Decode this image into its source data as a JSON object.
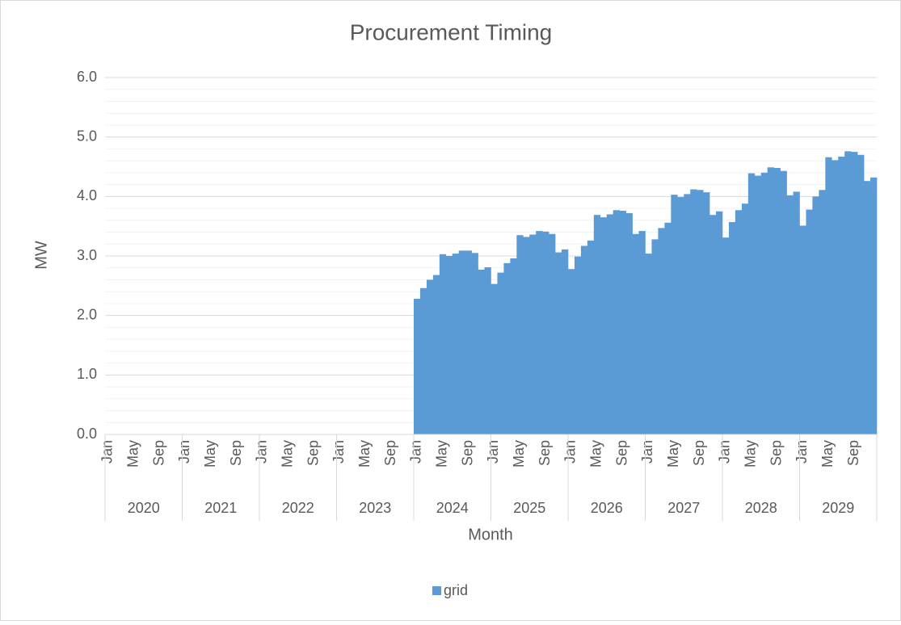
{
  "chart_data": {
    "type": "bar",
    "title": "Procurement Timing",
    "y_label": "MW",
    "x_label": "Month",
    "categories": [
      "Jan",
      null,
      null,
      null,
      "May",
      null,
      null,
      null,
      "Sep",
      null,
      null,
      null,
      "Jan",
      null,
      null,
      null,
      "May",
      null,
      null,
      null,
      "Sep",
      null,
      null,
      null,
      "Jan",
      null,
      null,
      null,
      "May",
      null,
      null,
      null,
      "Sep",
      null,
      null,
      null,
      "Jan",
      null,
      null,
      null,
      "May",
      null,
      null,
      null,
      "Sep",
      null,
      null,
      null,
      "Jan",
      null,
      null,
      null,
      "May",
      null,
      null,
      null,
      "Sep",
      null,
      null,
      null,
      "Jan",
      null,
      null,
      null,
      "May",
      null,
      null,
      null,
      "Sep",
      null,
      null,
      null,
      "Jan",
      null,
      null,
      null,
      "May",
      null,
      null,
      null,
      "Sep",
      null,
      null,
      null,
      "Jan",
      null,
      null,
      null,
      "May",
      null,
      null,
      null,
      "Sep",
      null,
      null,
      null,
      "Jan",
      null,
      null,
      null,
      "May",
      null,
      null,
      null,
      "Sep",
      null,
      null,
      null,
      "Jan",
      null,
      null,
      null,
      "May",
      null,
      null,
      null,
      "Sep",
      null,
      null,
      null
    ],
    "groups": [
      "2020",
      "2021",
      "2022",
      "2023",
      "2024",
      "2025",
      "2026",
      "2027",
      "2028",
      "2029"
    ],
    "series": [
      {
        "name": "grid",
        "color": "#5b9bd5",
        "values": [
          0,
          0,
          0,
          0,
          0,
          0,
          0,
          0,
          0,
          0,
          0,
          0,
          0,
          0,
          0,
          0,
          0,
          0,
          0,
          0,
          0,
          0,
          0,
          0,
          0,
          0,
          0,
          0,
          0,
          0,
          0,
          0,
          0,
          0,
          0,
          0,
          0,
          0,
          0,
          0,
          0,
          0,
          0,
          0,
          0,
          0,
          0,
          0,
          2.28,
          2.46,
          2.6,
          2.68,
          3.03,
          3.0,
          3.04,
          3.09,
          3.09,
          3.05,
          2.77,
          2.81,
          2.53,
          2.72,
          2.88,
          2.96,
          3.35,
          3.32,
          3.36,
          3.42,
          3.41,
          3.37,
          3.06,
          3.11,
          2.78,
          2.99,
          3.17,
          3.26,
          3.69,
          3.65,
          3.7,
          3.77,
          3.76,
          3.72,
          3.37,
          3.42,
          3.04,
          3.28,
          3.47,
          3.56,
          4.03,
          3.99,
          4.04,
          4.12,
          4.11,
          4.07,
          3.69,
          3.75,
          3.31,
          3.57,
          3.77,
          3.88,
          4.39,
          4.35,
          4.4,
          4.49,
          4.48,
          4.43,
          4.02,
          4.08,
          3.51,
          3.78,
          4.0,
          4.11,
          4.66,
          4.61,
          4.67,
          4.76,
          4.75,
          4.7,
          4.26,
          4.32
        ]
      }
    ],
    "ylim": [
      0,
      6
    ],
    "yticks": [
      {
        "value": 0,
        "label": "0.0"
      },
      {
        "value": 1,
        "label": "1.0"
      },
      {
        "value": 2,
        "label": "2.0"
      },
      {
        "value": 3,
        "label": "3.0"
      },
      {
        "value": 4,
        "label": "4.0"
      },
      {
        "value": 5,
        "label": "5.0"
      },
      {
        "value": 6,
        "label": "6.0"
      }
    ],
    "grid": true,
    "minor_grid": true,
    "legend": "bottom"
  }
}
